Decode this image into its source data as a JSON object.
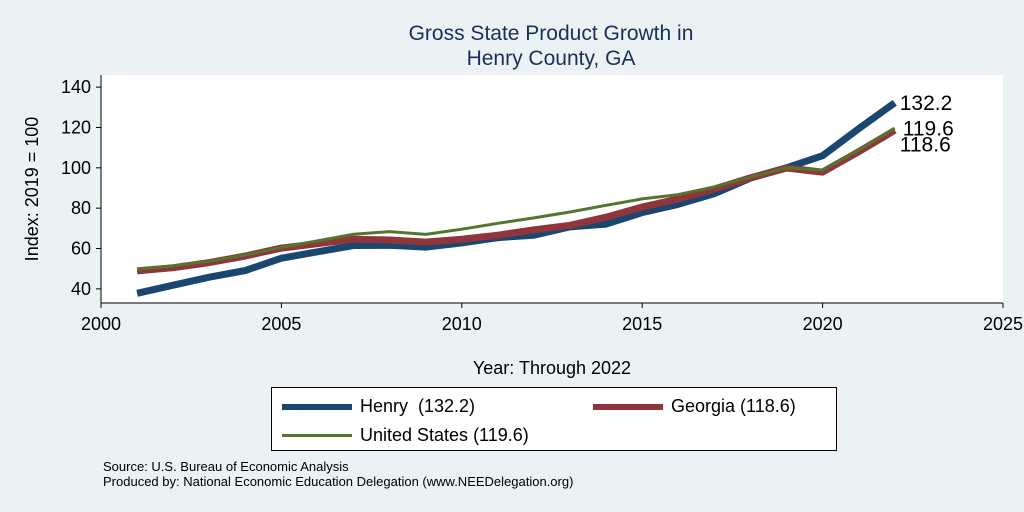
{
  "chart_data": {
    "type": "line",
    "title": [
      "Gross State Product Growth in",
      "Henry County, GA"
    ],
    "xlabel": "Year: Through 2022",
    "ylabel": "Index: 2019 = 100",
    "xlim": [
      2000,
      2025
    ],
    "ylim": [
      33,
      146
    ],
    "xticks": [
      2000,
      2005,
      2010,
      2015,
      2020,
      2025
    ],
    "yticks": [
      40,
      60,
      80,
      100,
      120,
      140
    ],
    "grid": false,
    "legend_position": "bottom",
    "x": [
      2001,
      2002,
      2003,
      2004,
      2005,
      2006,
      2007,
      2008,
      2009,
      2010,
      2011,
      2012,
      2013,
      2014,
      2015,
      2016,
      2017,
      2018,
      2019,
      2020,
      2021,
      2022
    ],
    "series": [
      {
        "name": "Henry",
        "legend_label": "Henry  (132.2)",
        "color": "#1a476f",
        "width": 7,
        "values": [
          37.8,
          41.8,
          45.8,
          49.1,
          55.2,
          58.4,
          61.5,
          61.6,
          60.7,
          62.8,
          65.4,
          66.6,
          70.7,
          72.1,
          77.8,
          81.9,
          87.2,
          94.9,
          100,
          106,
          119.4,
          132.2
        ],
        "end_label": "132.2"
      },
      {
        "name": "Georgia",
        "legend_label": "Georgia (118.6)",
        "color": "#90353b",
        "width": 7,
        "values": [
          48.9,
          50.5,
          53,
          56.3,
          60.2,
          62.4,
          64.6,
          64.2,
          63.2,
          64.6,
          66.6,
          69.3,
          71.5,
          75.5,
          80.6,
          84.6,
          89.5,
          95,
          99.9,
          97.9,
          108,
          118.6
        ],
        "end_label": "118.6"
      },
      {
        "name": "United States",
        "legend_label": "United States (119.6)",
        "color": "#55752f",
        "width": 3,
        "values": [
          49.7,
          51.4,
          53.7,
          56.8,
          60.6,
          63.8,
          67.1,
          68.4,
          67,
          69.6,
          72.5,
          75.2,
          78.1,
          81.4,
          84.6,
          86.7,
          90.6,
          95.4,
          100,
          98.8,
          108.8,
          119.6
        ],
        "end_label": "119.6"
      }
    ]
  },
  "source": {
    "line1": "Source: U.S. Bureau of Economic Analysis",
    "line2": "Produced by: National Economic Education Delegation (www.NEEDelegation.org)"
  }
}
